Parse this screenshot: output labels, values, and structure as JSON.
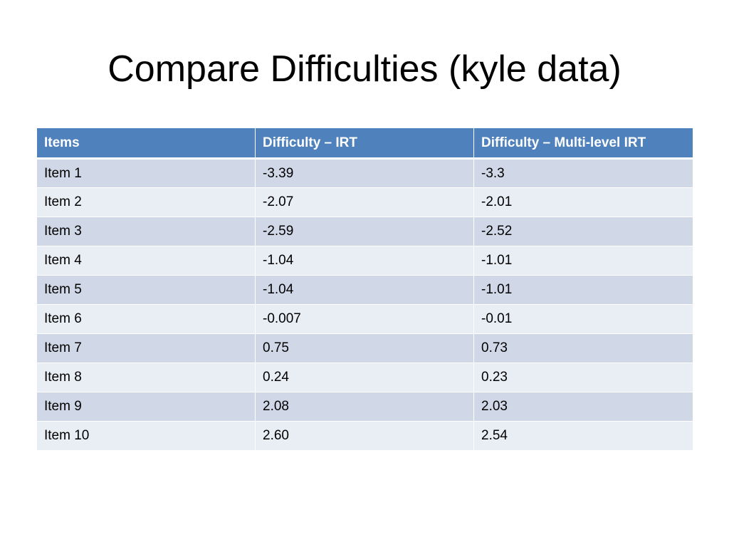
{
  "slide": {
    "title": "Compare Difficulties (kyle data)"
  },
  "table": {
    "headers": [
      "Items",
      "Difficulty – IRT",
      "Difficulty – Multi-level IRT"
    ],
    "rows": [
      [
        "Item 1",
        "-3.39",
        "-3.3"
      ],
      [
        "Item 2",
        "-2.07",
        "-2.01"
      ],
      [
        "Item 3",
        "-2.59",
        "-2.52"
      ],
      [
        "Item 4",
        "-1.04",
        "-1.01"
      ],
      [
        "Item 5",
        "-1.04",
        "-1.01"
      ],
      [
        "Item 6",
        "-0.007",
        "-0.01"
      ],
      [
        "Item 7",
        "0.75",
        "0.73"
      ],
      [
        "Item 8",
        "0.24",
        "0.23"
      ],
      [
        "Item 9",
        "2.08",
        "2.03"
      ],
      [
        "Item 10",
        "2.60",
        "2.54"
      ]
    ]
  },
  "colors": {
    "header_bg": "#4f81bd",
    "row_odd_bg": "#d0d8e8",
    "row_even_bg": "#e9edf4"
  }
}
